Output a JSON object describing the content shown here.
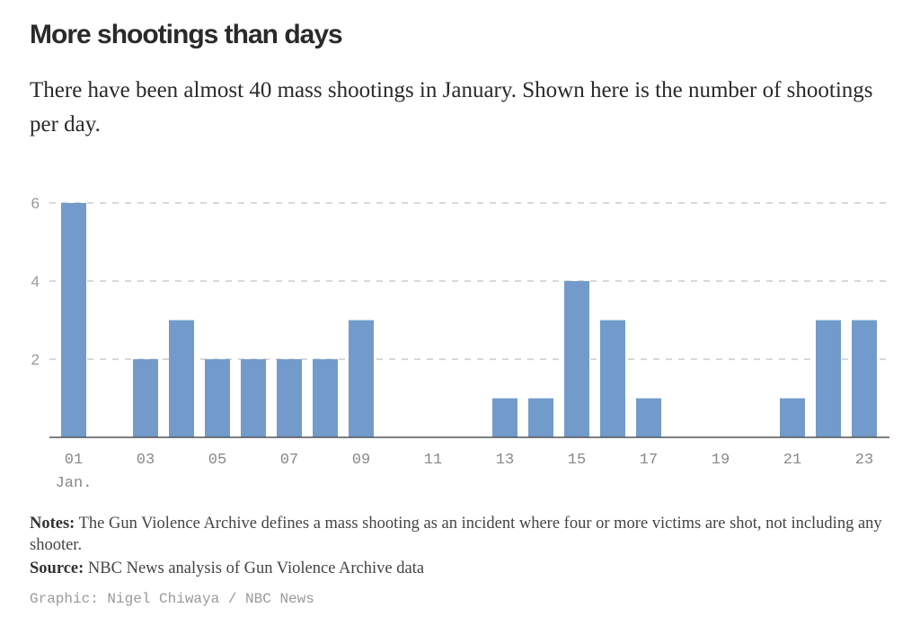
{
  "header": {
    "title": "More shootings than days",
    "subtitle": "There have been almost 40 mass shootings in January. Shown here is the number of shootings per day."
  },
  "chart_data": {
    "type": "bar",
    "title": "More shootings than days",
    "xlabel": "",
    "ylabel": "",
    "categories": [
      "01",
      "02",
      "03",
      "04",
      "05",
      "06",
      "07",
      "08",
      "09",
      "10",
      "11",
      "12",
      "13",
      "14",
      "15",
      "16",
      "17",
      "18",
      "19",
      "20",
      "21",
      "22",
      "23"
    ],
    "values": [
      6,
      0,
      2,
      3,
      2,
      2,
      2,
      2,
      3,
      0,
      0,
      0,
      1,
      1,
      4,
      3,
      1,
      0,
      0,
      0,
      1,
      3,
      3
    ],
    "ylim": [
      0,
      6
    ],
    "yticks": [
      2,
      4,
      6
    ],
    "ytick_labels": [
      "2",
      "4",
      "6"
    ],
    "xtick_labels": [
      "01",
      "03",
      "05",
      "07",
      "09",
      "11",
      "13",
      "15",
      "17",
      "19",
      "21",
      "23"
    ],
    "xtick_sublabel": "Jan.",
    "grid": true,
    "bar_color": "#729bcc",
    "grid_color": "#cccccc",
    "axis_color": "#555555"
  },
  "footer": {
    "notes_label": "Notes:",
    "notes_text": " The Gun Violence Archive defines a mass shooting as an incident where four or more victims are shot, not including any shooter.",
    "source_label": "Source:",
    "source_text": " NBC News analysis of Gun Violence Archive data",
    "credit": "Graphic: Nigel Chiwaya / NBC News"
  }
}
